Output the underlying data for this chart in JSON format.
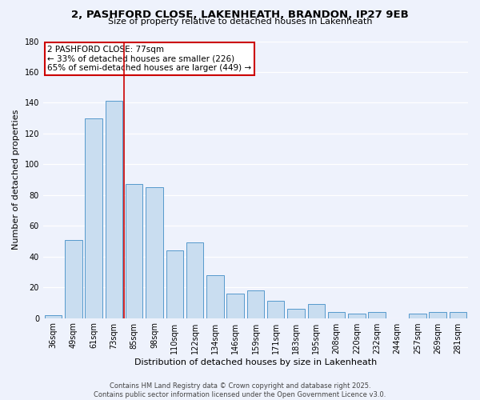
{
  "title": "2, PASHFORD CLOSE, LAKENHEATH, BRANDON, IP27 9EB",
  "subtitle": "Size of property relative to detached houses in Lakenheath",
  "xlabel": "Distribution of detached houses by size in Lakenheath",
  "ylabel": "Number of detached properties",
  "categories": [
    "36sqm",
    "49sqm",
    "61sqm",
    "73sqm",
    "85sqm",
    "98sqm",
    "110sqm",
    "122sqm",
    "134sqm",
    "146sqm",
    "159sqm",
    "171sqm",
    "183sqm",
    "195sqm",
    "208sqm",
    "220sqm",
    "232sqm",
    "244sqm",
    "257sqm",
    "269sqm",
    "281sqm"
  ],
  "values": [
    2,
    51,
    130,
    141,
    87,
    85,
    44,
    49,
    28,
    16,
    18,
    11,
    6,
    9,
    4,
    3,
    4,
    0,
    3,
    4,
    4
  ],
  "bar_color": "#c9ddf0",
  "bar_edge_color": "#5599cc",
  "ylim": [
    0,
    180
  ],
  "yticks": [
    0,
    20,
    40,
    60,
    80,
    100,
    120,
    140,
    160,
    180
  ],
  "property_line_x": 3.5,
  "property_line_color": "#cc0000",
  "annotation_title": "2 PASHFORD CLOSE: 77sqm",
  "annotation_line1": "← 33% of detached houses are smaller (226)",
  "annotation_line2": "65% of semi-detached houses are larger (449) →",
  "annotation_box_color": "#ffffff",
  "annotation_box_edge_color": "#cc0000",
  "footer_line1": "Contains HM Land Registry data © Crown copyright and database right 2025.",
  "footer_line2": "Contains public sector information licensed under the Open Government Licence v3.0.",
  "background_color": "#eef2fc",
  "title_fontsize": 9.5,
  "subtitle_fontsize": 8,
  "ylabel_fontsize": 8,
  "xlabel_fontsize": 8,
  "tick_fontsize": 7,
  "annotation_fontsize": 7.5,
  "footer_fontsize": 6
}
